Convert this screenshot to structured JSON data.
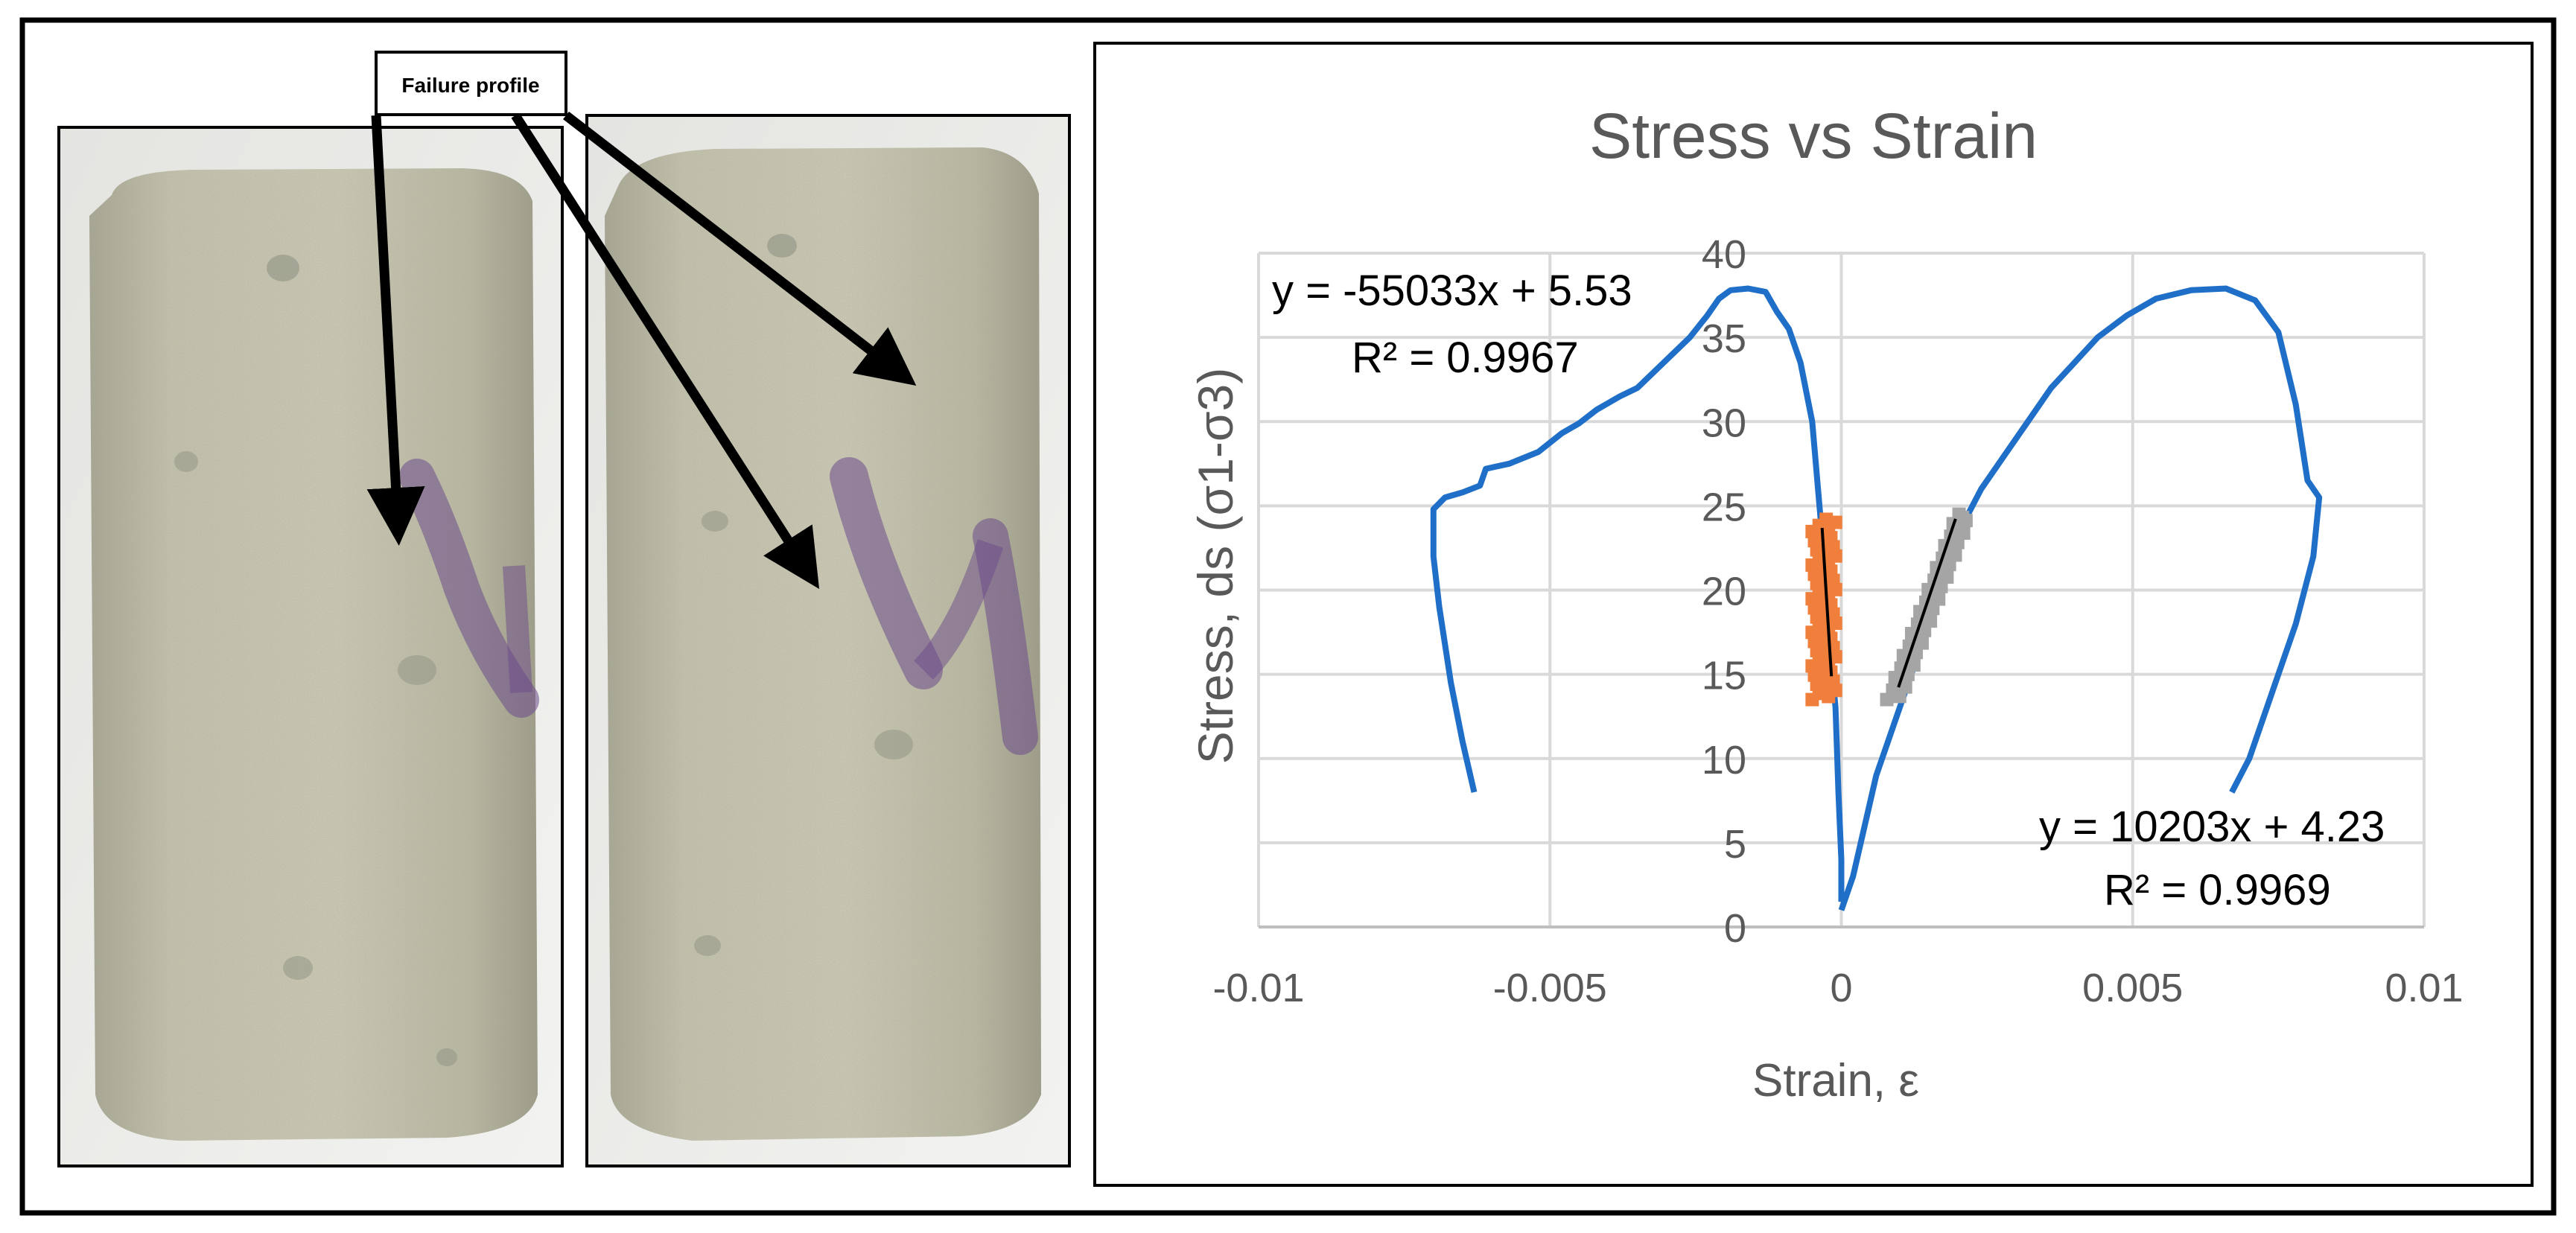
{
  "figure": {
    "annotation": {
      "label": "Failure profile"
    },
    "photos": [
      {
        "name": "specimen-left"
      },
      {
        "name": "specimen-right"
      }
    ]
  },
  "chart_data": {
    "type": "scatter",
    "title": "Stress vs Strain",
    "xlabel": "Strain, ε",
    "ylabel": "Stress, ds (σ1-σ3)",
    "xlim": [
      -0.01,
      0.01
    ],
    "ylim": [
      0,
      40
    ],
    "grid": true,
    "xticks": [
      -0.01,
      -0.005,
      0,
      0.005,
      0.01
    ],
    "xtick_labels": [
      "-0.01",
      "-0.005",
      "0",
      "0.005",
      "0.01"
    ],
    "yticks": [
      0,
      5,
      10,
      15,
      20,
      25,
      30,
      35,
      40
    ],
    "ytick_labels": [
      "0",
      "5",
      "10",
      "15",
      "20",
      "25",
      "30",
      "35",
      "40"
    ],
    "colors": {
      "curve": "#1f6fc8",
      "orange": "#f07f3c",
      "gray": "#a5a5a5",
      "trend": "#000000",
      "grid": "#d9d9d9",
      "axis_text": "#595959"
    },
    "series": [
      {
        "name": "radial-strain-curve",
        "points": [
          [
            -0.0063,
            8
          ],
          [
            -0.0065,
            11
          ],
          [
            -0.0067,
            14.5
          ],
          [
            -0.0069,
            19
          ],
          [
            -0.007,
            22
          ],
          [
            -0.007,
            24.8
          ],
          [
            -0.0068,
            25.5
          ],
          [
            -0.0065,
            25.8
          ],
          [
            -0.0062,
            26.2
          ],
          [
            -0.0061,
            27.2
          ],
          [
            -0.0057,
            27.5
          ],
          [
            -0.0052,
            28.2
          ],
          [
            -0.0048,
            29.3
          ],
          [
            -0.0045,
            29.9
          ],
          [
            -0.0042,
            30.7
          ],
          [
            -0.0038,
            31.5
          ],
          [
            -0.0035,
            32
          ],
          [
            -0.0032,
            33
          ],
          [
            -0.0029,
            34
          ],
          [
            -0.0026,
            35
          ],
          [
            -0.0023,
            36.3
          ],
          [
            -0.0021,
            37.3
          ],
          [
            -0.0019,
            37.8
          ],
          [
            -0.0016,
            37.9
          ],
          [
            -0.0013,
            37.7
          ],
          [
            -0.0011,
            36.5
          ],
          [
            -0.0009,
            35.5
          ],
          [
            -0.0007,
            33.5
          ],
          [
            -0.0005,
            30
          ],
          [
            -0.0004,
            26
          ],
          [
            -0.0003,
            22
          ],
          [
            -0.0002,
            17
          ],
          [
            -0.0001,
            13
          ],
          [
            -5e-05,
            8
          ],
          [
            0.0,
            4
          ],
          [
            0.0,
            1.5
          ]
        ]
      },
      {
        "name": "axial-strain-curve",
        "points": [
          [
            0.0,
            1
          ],
          [
            0.0002,
            3
          ],
          [
            0.0004,
            6
          ],
          [
            0.0006,
            9
          ],
          [
            0.0009,
            12
          ],
          [
            0.0012,
            15
          ],
          [
            0.0015,
            18
          ],
          [
            0.0018,
            21
          ],
          [
            0.0021,
            24
          ],
          [
            0.0024,
            26
          ],
          [
            0.0028,
            28
          ],
          [
            0.0032,
            30
          ],
          [
            0.0036,
            32
          ],
          [
            0.004,
            33.5
          ],
          [
            0.0044,
            35
          ],
          [
            0.0049,
            36.3
          ],
          [
            0.0054,
            37.3
          ],
          [
            0.006,
            37.8
          ],
          [
            0.0066,
            37.9
          ],
          [
            0.0071,
            37.2
          ],
          [
            0.0075,
            35.3
          ],
          [
            0.0078,
            31
          ],
          [
            0.008,
            26.5
          ],
          [
            0.0082,
            25.5
          ],
          [
            0.0081,
            22
          ],
          [
            0.0078,
            18
          ],
          [
            0.0074,
            14
          ],
          [
            0.007,
            10
          ],
          [
            0.0067,
            8
          ]
        ]
      },
      {
        "name": "radial-fit-points",
        "x_range": [
          -0.0005,
          -0.0001
        ],
        "y_range": [
          13.5,
          24.2
        ]
      },
      {
        "name": "axial-fit-points",
        "x_range": [
          0.0009,
          0.0021
        ],
        "y_range": [
          13.5,
          24.5
        ]
      }
    ],
    "trendlines": [
      {
        "name": "radial-trendline",
        "slope": -55033,
        "intercept": 5.53,
        "x_range": [
          -0.00033,
          -0.00017
        ],
        "equation": "y = -55033x + 5.53",
        "r2": "R² = 0.9967"
      },
      {
        "name": "axial-trendline",
        "slope": 10203,
        "intercept": 4.23,
        "x_range": [
          0.00098,
          0.00196
        ],
        "equation": "y = 10203x + 4.23",
        "r2": "R² = 0.9969"
      }
    ]
  }
}
